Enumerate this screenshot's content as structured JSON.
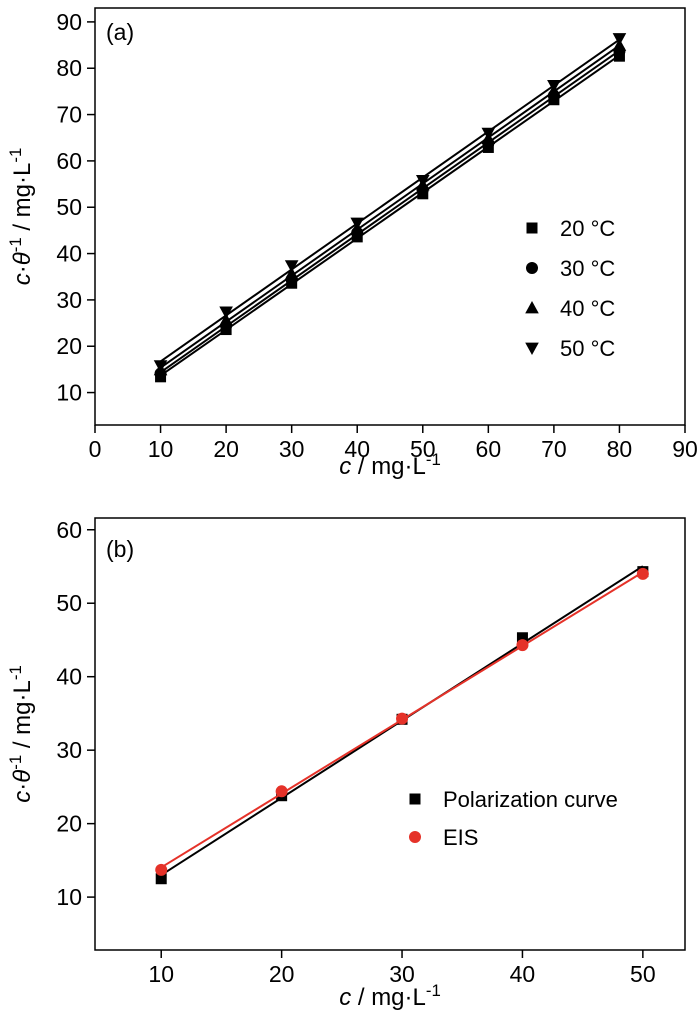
{
  "page": {
    "background": "#ffffff",
    "text_color": "#000000"
  },
  "chart_data": [
    {
      "type": "line",
      "panel_label": "(a)",
      "xlabel": "c / mg·L^-1",
      "ylabel": "c·θ^-1 / mg·L^-1",
      "xlim": [
        0,
        90
      ],
      "ylim": [
        3,
        93
      ],
      "xticks": [
        0,
        10,
        20,
        30,
        40,
        50,
        60,
        70,
        80,
        90
      ],
      "yticks": [
        10,
        20,
        30,
        40,
        50,
        60,
        70,
        80,
        90
      ],
      "x": [
        10,
        20,
        30,
        40,
        50,
        60,
        70,
        80
      ],
      "grid": false,
      "legend_position": "inside-right",
      "series": [
        {
          "name": "20 °C",
          "marker": "square",
          "color": "#000000",
          "values": [
            13.4,
            23.6,
            33.6,
            43.6,
            52.9,
            62.9,
            73.2,
            82.6
          ]
        },
        {
          "name": "30 °C",
          "marker": "circle",
          "color": "#000000",
          "values": [
            14.1,
            24.4,
            34.4,
            44.5,
            53.8,
            63.8,
            74.1,
            83.7
          ]
        },
        {
          "name": "40 °C",
          "marker": "triangle-up",
          "color": "#000000",
          "values": [
            14.9,
            25.6,
            35.6,
            45.4,
            54.8,
            64.8,
            75.1,
            84.9
          ]
        },
        {
          "name": "50 °C",
          "marker": "triangle-down",
          "color": "#000000",
          "values": [
            15.8,
            27.4,
            37.4,
            46.6,
            55.8,
            66.0,
            76.3,
            86.4
          ]
        }
      ]
    },
    {
      "type": "line",
      "panel_label": "(b)",
      "xlabel": "c / mg·L^-1",
      "ylabel": "c·θ^-1 / mg·L^-1",
      "xlim": [
        4.5,
        53.5
      ],
      "ylim": [
        2.8,
        61.6
      ],
      "xticks": [
        10,
        20,
        30,
        40,
        50
      ],
      "yticks": [
        10,
        20,
        30,
        40,
        50,
        60
      ],
      "x": [
        10,
        20,
        30,
        40,
        50
      ],
      "grid": false,
      "legend_position": "inside-right",
      "series": [
        {
          "name": "Polarization curve",
          "marker": "square",
          "color": "#000000",
          "values": [
            12.5,
            23.8,
            34.2,
            45.3,
            54.3
          ]
        },
        {
          "name": "EIS",
          "marker": "circle",
          "color": "#e53229",
          "values": [
            13.7,
            24.4,
            34.3,
            44.3,
            54.0
          ]
        }
      ]
    }
  ]
}
